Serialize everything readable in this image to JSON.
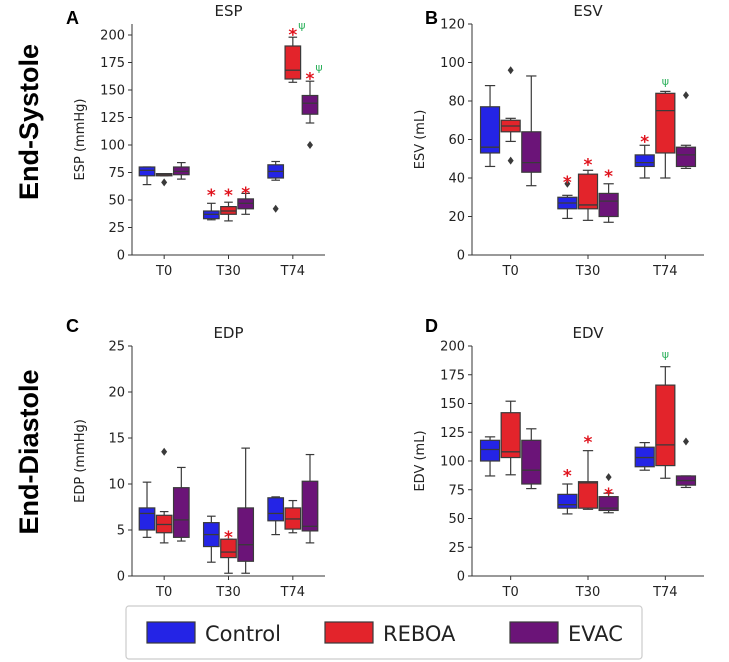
{
  "row_labels": {
    "top": "End-Systole",
    "bottom": "End-Diastole"
  },
  "groups": [
    {
      "name": "Control",
      "color": "#2424e6"
    },
    {
      "name": "REBOA",
      "color": "#e3242b"
    },
    {
      "name": "EVAC",
      "color": "#6b1478"
    }
  ],
  "legend": {
    "labels": [
      "Control",
      "REBOA",
      "EVAC"
    ]
  },
  "chart_data": [
    {
      "type": "box",
      "letter": "A",
      "title": "ESP",
      "ylabel": "ESP (mmHg)",
      "ylim": [
        0,
        210
      ],
      "yticks": [
        0,
        25,
        50,
        75,
        100,
        125,
        150,
        175,
        200
      ],
      "categories": [
        "T0",
        "T30",
        "T74"
      ],
      "series": [
        {
          "name": "Control",
          "boxes": [
            {
              "min": 64,
              "q1": 72,
              "median": 77,
              "q3": 80,
              "max": 80,
              "outliers": []
            },
            {
              "min": 32,
              "q1": 33,
              "median": 37,
              "q3": 40,
              "max": 47,
              "outliers": []
            },
            {
              "min": 68,
              "q1": 70,
              "median": 76,
              "q3": 82,
              "max": 85,
              "outliers": [
                42
              ]
            }
          ]
        },
        {
          "name": "REBOA",
          "boxes": [
            {
              "min": 72,
              "q1": 72,
              "median": 73,
              "q3": 74,
              "max": 74,
              "outliers": [
                66
              ]
            },
            {
              "min": 31,
              "q1": 37,
              "median": 40,
              "q3": 44,
              "max": 48,
              "outliers": []
            },
            {
              "min": 157,
              "q1": 160,
              "median": 168,
              "q3": 190,
              "max": 198,
              "outliers": []
            }
          ]
        },
        {
          "name": "EVAC",
          "boxes": [
            {
              "min": 69,
              "q1": 73,
              "median": 76,
              "q3": 80,
              "max": 84,
              "outliers": []
            },
            {
              "min": 37,
              "q1": 42,
              "median": 47,
              "q3": 51,
              "max": 56,
              "outliers": []
            },
            {
              "min": 120,
              "q1": 128,
              "median": 138,
              "q3": 145,
              "max": 158,
              "outliers": [
                100
              ]
            }
          ]
        }
      ],
      "annotations": [
        {
          "text": "*",
          "category": "T30",
          "series": "Control",
          "y": 58,
          "kind": "star"
        },
        {
          "text": "*",
          "category": "T30",
          "series": "REBOA",
          "y": 58,
          "kind": "star"
        },
        {
          "text": "*",
          "category": "T30",
          "series": "EVAC",
          "y": 60,
          "kind": "star"
        },
        {
          "text": "*",
          "category": "T74",
          "series": "REBOA",
          "y": 204,
          "kind": "star"
        },
        {
          "text": "ψ",
          "category": "T74",
          "series": "REBOA",
          "y": 208,
          "kind": "psi",
          "dx": 9
        },
        {
          "text": "*",
          "category": "T74",
          "series": "EVAC",
          "y": 164,
          "kind": "star"
        },
        {
          "text": "ψ",
          "category": "T74",
          "series": "EVAC",
          "y": 170,
          "kind": "psi",
          "dx": 9
        }
      ]
    },
    {
      "type": "box",
      "letter": "B",
      "title": "ESV",
      "ylabel": "ESV (mL)",
      "ylim": [
        0,
        120
      ],
      "yticks": [
        0,
        20,
        40,
        60,
        80,
        100,
        120
      ],
      "categories": [
        "T0",
        "T30",
        "T74"
      ],
      "series": [
        {
          "name": "Control",
          "boxes": [
            {
              "min": 46,
              "q1": 53,
              "median": 56,
              "q3": 77,
              "max": 88,
              "outliers": []
            },
            {
              "min": 19,
              "q1": 24,
              "median": 27,
              "q3": 30,
              "max": 31,
              "outliers": [
                37
              ]
            },
            {
              "min": 40,
              "q1": 46,
              "median": 48,
              "q3": 52,
              "max": 57,
              "outliers": []
            }
          ]
        },
        {
          "name": "REBOA",
          "boxes": [
            {
              "min": 59,
              "q1": 64,
              "median": 67,
              "q3": 70,
              "max": 71,
              "outliers": [
                49,
                96
              ]
            },
            {
              "min": 18,
              "q1": 24,
              "median": 26,
              "q3": 42,
              "max": 44,
              "outliers": []
            },
            {
              "min": 40,
              "q1": 53,
              "median": 75,
              "q3": 84,
              "max": 85,
              "outliers": []
            }
          ]
        },
        {
          "name": "EVAC",
          "boxes": [
            {
              "min": 36,
              "q1": 43,
              "median": 48,
              "q3": 64,
              "max": 93,
              "outliers": []
            },
            {
              "min": 17,
              "q1": 20,
              "median": 28,
              "q3": 32,
              "max": 37,
              "outliers": []
            },
            {
              "min": 45,
              "q1": 46,
              "median": 52,
              "q3": 56,
              "max": 57,
              "outliers": [
                83
              ]
            }
          ]
        }
      ],
      "annotations": [
        {
          "text": "*",
          "category": "T30",
          "series": "Control",
          "y": 40,
          "kind": "star"
        },
        {
          "text": "*",
          "category": "T30",
          "series": "REBOA",
          "y": 49,
          "kind": "star"
        },
        {
          "text": "*",
          "category": "T30",
          "series": "EVAC",
          "y": 43,
          "kind": "star"
        },
        {
          "text": "*",
          "category": "T74",
          "series": "Control",
          "y": 61,
          "kind": "star"
        },
        {
          "text": "ψ",
          "category": "T74",
          "series": "REBOA",
          "y": 90,
          "kind": "psi"
        }
      ]
    },
    {
      "type": "box",
      "letter": "C",
      "title": "EDP",
      "ylabel": "EDP (mmHg)",
      "ylim": [
        0,
        25
      ],
      "yticks": [
        0,
        5,
        10,
        15,
        20,
        25
      ],
      "categories": [
        "T0",
        "T30",
        "T74"
      ],
      "series": [
        {
          "name": "Control",
          "boxes": [
            {
              "min": 4.2,
              "q1": 5.0,
              "median": 6.8,
              "q3": 7.4,
              "max": 10.2,
              "outliers": []
            },
            {
              "min": 1.5,
              "q1": 3.2,
              "median": 4.5,
              "q3": 5.8,
              "max": 6.5,
              "outliers": []
            },
            {
              "min": 4.5,
              "q1": 6.0,
              "median": 6.8,
              "q3": 8.5,
              "max": 8.6,
              "outliers": []
            }
          ]
        },
        {
          "name": "REBOA",
          "boxes": [
            {
              "min": 3.6,
              "q1": 4.7,
              "median": 5.6,
              "q3": 6.6,
              "max": 7.0,
              "outliers": [
                13.5
              ]
            },
            {
              "min": 0.3,
              "q1": 2.0,
              "median": 2.6,
              "q3": 4.0,
              "max": 4.0,
              "outliers": []
            },
            {
              "min": 4.7,
              "q1": 5.1,
              "median": 6.2,
              "q3": 7.4,
              "max": 8.2,
              "outliers": []
            }
          ]
        },
        {
          "name": "EVAC",
          "boxes": [
            {
              "min": 3.8,
              "q1": 4.2,
              "median": 6.1,
              "q3": 9.6,
              "max": 11.8,
              "outliers": []
            },
            {
              "min": 0.3,
              "q1": 1.6,
              "median": 3.4,
              "q3": 7.4,
              "max": 13.9,
              "outliers": []
            },
            {
              "min": 3.6,
              "q1": 4.9,
              "median": 5.4,
              "q3": 10.3,
              "max": 13.2,
              "outliers": []
            }
          ]
        }
      ],
      "annotations": [
        {
          "text": "*",
          "category": "T30",
          "series": "REBOA",
          "y": 4.7,
          "kind": "star"
        }
      ]
    },
    {
      "type": "box",
      "letter": "D",
      "title": "EDV",
      "ylabel": "EDV (mL)",
      "ylim": [
        0,
        200
      ],
      "yticks": [
        0,
        25,
        50,
        75,
        100,
        125,
        150,
        175,
        200
      ],
      "categories": [
        "T0",
        "T30",
        "T74"
      ],
      "series": [
        {
          "name": "Control",
          "boxes": [
            {
              "min": 87,
              "q1": 100,
              "median": 110,
              "q3": 118,
              "max": 121,
              "outliers": []
            },
            {
              "min": 54,
              "q1": 59,
              "median": 62,
              "q3": 71,
              "max": 80,
              "outliers": []
            },
            {
              "min": 92,
              "q1": 95,
              "median": 103,
              "q3": 112,
              "max": 116,
              "outliers": []
            }
          ]
        },
        {
          "name": "REBOA",
          "boxes": [
            {
              "min": 88,
              "q1": 103,
              "median": 108,
              "q3": 142,
              "max": 152,
              "outliers": []
            },
            {
              "min": 58,
              "q1": 59,
              "median": 81,
              "q3": 82,
              "max": 109,
              "outliers": []
            },
            {
              "min": 85,
              "q1": 96,
              "median": 114,
              "q3": 166,
              "max": 182,
              "outliers": []
            }
          ]
        },
        {
          "name": "EVAC",
          "boxes": [
            {
              "min": 76,
              "q1": 80,
              "median": 92,
              "q3": 118,
              "max": 128,
              "outliers": []
            },
            {
              "min": 55,
              "q1": 57,
              "median": 59,
              "q3": 69,
              "max": 72,
              "outliers": [
                86
              ]
            },
            {
              "min": 77,
              "q1": 79,
              "median": 83,
              "q3": 87,
              "max": 87,
              "outliers": [
                117
              ]
            }
          ]
        }
      ],
      "annotations": [
        {
          "text": "*",
          "category": "T30",
          "series": "Control",
          "y": 91,
          "kind": "star"
        },
        {
          "text": "*",
          "category": "T30",
          "series": "REBOA",
          "y": 120,
          "kind": "star"
        },
        {
          "text": "*",
          "category": "T30",
          "series": "EVAC",
          "y": 75,
          "kind": "star"
        },
        {
          "text": "ψ",
          "category": "T74",
          "series": "REBOA",
          "y": 192,
          "kind": "psi"
        }
      ]
    }
  ]
}
